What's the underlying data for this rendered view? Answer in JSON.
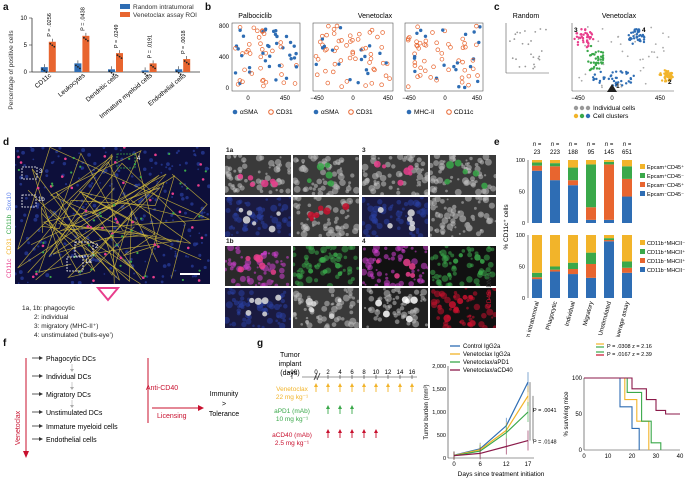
{
  "panel_labels": {
    "a": "a",
    "b": "b",
    "c": "c",
    "d": "d",
    "e": "e",
    "f": "f",
    "g": "g"
  },
  "colors": {
    "random": "#2e6db4",
    "venetoclax": "#e8652f",
    "green": "#3aa84a",
    "yellow": "#f2b42a",
    "red": "#c8102e",
    "pink": "#e83e8c"
  },
  "panel_a": {
    "ylabel": "Percentage of positive cells",
    "legend": [
      "Random intratumoral",
      "Venetoclax assay ROI"
    ],
    "pvalues": [
      "P = .0256",
      "P = .0438",
      "P = .0249",
      "P = .0191",
      "P = .0018"
    ],
    "chart_data": {
      "type": "bar",
      "categories": [
        "CD11c",
        "Leukocytes",
        "Dendritic cells",
        "Immature myeloid cells",
        "Endothelial cells"
      ],
      "series": [
        {
          "name": "Random intratumoral",
          "values": [
            0.9,
            1.6,
            0.5,
            0.3,
            0.5
          ]
        },
        {
          "name": "Venetoclax assay ROI",
          "values": [
            5.6,
            6.7,
            3.5,
            1.6,
            2.4
          ]
        }
      ],
      "ylim": [
        0,
        10
      ],
      "yticks": [
        "0",
        "5",
        "10"
      ]
    }
  },
  "panel_b": {
    "titles": [
      "Palbociclib",
      "Venetoclax"
    ],
    "xticks1": [
      "0",
      "450"
    ],
    "xticks2": [
      "−450",
      "0",
      "450"
    ],
    "xticks3": [
      "−450",
      "0",
      "450"
    ],
    "yticks1": [
      "0",
      "400",
      "800"
    ],
    "legend1": [
      "αSMA",
      "CD31"
    ],
    "legend2": [
      "αSMA",
      "CD31"
    ],
    "legend3": [
      "MHC-II",
      "CD11c"
    ]
  },
  "panel_c": {
    "titles": [
      "Random",
      "Venetoclax"
    ],
    "cluster_nums": [
      "1",
      "2",
      "3",
      "4"
    ],
    "xticks": [
      "−450",
      "0",
      "450"
    ],
    "legend": [
      "Individual cells",
      "Cell clusters"
    ]
  },
  "panel_d": {
    "channel_labels": [
      "CD11c",
      "CD31",
      "CD11b",
      "Sox10"
    ],
    "region_labels": [
      "1a",
      "1b",
      "2",
      "3",
      "4"
    ],
    "key": [
      "1a, 1b: phagocytic",
      "2: individual",
      "3: migratory (MHC-II⁺)",
      "4: unstimulated (‘bulls-eye’)"
    ],
    "tile_labels": [
      "1a",
      "3",
      "1b",
      "4"
    ],
    "side_label": "CD45",
    "side_label2": "DNA"
  },
  "panel_e": {
    "n_values": [
      "23",
      "223",
      "188",
      "95",
      "145",
      "651"
    ],
    "ylabel": "% CD11c⁺ cells",
    "categories": [
      "Random intratumoral",
      "Phagocytic",
      "Individual",
      "Migratory",
      "Unstimulated",
      "Average assay"
    ],
    "legend_top": [
      "Epcam⁺CD45⁺",
      "Epcam⁺CD45⁻",
      "Epcam⁻CD45⁺",
      "Epcam⁻CD45⁻"
    ],
    "legend_bottom": [
      "CD11b⁺MHCII⁻",
      "CD11b⁺MHCII⁺",
      "CD11b⁻MHCII⁺",
      "CD11b⁻MHCII⁻"
    ],
    "yticks": [
      "0",
      "50",
      "100"
    ],
    "chart_data": [
      {
        "type": "bar",
        "stacked": true,
        "categories": [
          "Random intratumoral",
          "Phagocytic",
          "Individual",
          "Migratory",
          "Unstimulated",
          "Average assay"
        ],
        "series": [
          {
            "name": "Epcam⁻CD45⁻",
            "values": [
              83,
              68,
              60,
              5,
              5,
              42
            ]
          },
          {
            "name": "Epcam⁻CD45⁺",
            "values": [
              8,
              22,
              8,
              20,
              88,
              28
            ]
          },
          {
            "name": "Epcam⁺CD45⁻",
            "values": [
              5,
              5,
              20,
              68,
              4,
              20
            ]
          },
          {
            "name": "Epcam⁺CD45⁺",
            "values": [
              4,
              5,
              12,
              7,
              3,
              10
            ]
          }
        ]
      },
      {
        "type": "bar",
        "stacked": true,
        "categories": [
          "Random intratumoral",
          "Phagocytic",
          "Individual",
          "Migratory",
          "Unstimulated",
          "Average assay"
        ],
        "series": [
          {
            "name": "CD11b⁻MHCII⁻",
            "values": [
              30,
              42,
              38,
              32,
              90,
              40
            ]
          },
          {
            "name": "CD11b⁻MHCII⁺",
            "values": [
              3,
              3,
              8,
              22,
              2,
              8
            ]
          },
          {
            "name": "CD11b⁺MHCII⁺",
            "values": [
              7,
              5,
              10,
              18,
              3,
              10
            ]
          },
          {
            "name": "CD11b⁺MHCII⁻",
            "values": [
              60,
              50,
              44,
              28,
              5,
              42
            ]
          }
        ]
      }
    ]
  },
  "panel_f": {
    "side_label": "Venetoclax",
    "items": [
      "Phagocytic DCs",
      "Individual DCs",
      "Migratory DCs",
      "Unstimulated DCs",
      "Immature myeloid cells",
      "Endothelial cells"
    ],
    "anti": "Anti-CD40",
    "licensing": "Licensing",
    "outcome_top": "Immunity",
    "outcome_gt": ">",
    "outcome_bottom": "Tolerance"
  },
  "panel_g": {
    "timeline_header": [
      "Tumor",
      "implant",
      "(days)"
    ],
    "days": [
      "−10",
      "0",
      "2",
      "4",
      "6",
      "8",
      "10",
      "12",
      "14",
      "16"
    ],
    "drugs": [
      {
        "name": "Venetoclax",
        "dose": "22 mg kg⁻¹"
      },
      {
        "name": "aPD1 (mAb)",
        "dose": "10 mg kg⁻¹"
      },
      {
        "name": "aCD40 (mAb)",
        "dose": "2.5 mg kg⁻¹"
      }
    ],
    "growth": {
      "ylabel": "Tumor burden (mm³)",
      "xlabel": "Days since treatment initiation",
      "legend": [
        "Control IgG2a",
        "Venetoclax IgG2a",
        "Venetoclax/aPD1",
        "Venetoclax/aCD40"
      ],
      "pvalues": [
        "P = .0041",
        "P = .0148"
      ],
      "chart_data": {
        "type": "line",
        "x": [
          0,
          6,
          12,
          17
        ],
        "series": [
          {
            "name": "Control IgG2a",
            "values": [
              60,
              200,
              700,
              1650
            ]
          },
          {
            "name": "Venetoclax IgG2a",
            "values": [
              55,
              180,
              600,
              1350
            ]
          },
          {
            "name": "Venetoclax/aPD1",
            "values": [
              50,
              150,
              550,
              1000
            ]
          },
          {
            "name": "Venetoclax/aCD40",
            "values": [
              50,
              100,
              250,
              380
            ]
          }
        ],
        "ylim": [
          0,
          2000
        ],
        "yticks": [
          "0",
          "500",
          "1,000",
          "1,500",
          "2,000"
        ],
        "xticks": [
          "0",
          "6",
          "12",
          "17"
        ]
      }
    },
    "survival": {
      "ylabel": "% surviving mice",
      "pvalues": [
        "P = .0308 z = 2.16",
        "P = .0167 z = 2.39"
      ],
      "chart_data": {
        "type": "line",
        "ylim": [
          0,
          100
        ],
        "xlim": [
          0,
          40
        ],
        "yticks": [
          "0",
          "50",
          "100"
        ],
        "xticks": [
          "0",
          "10",
          "20",
          "30",
          "40"
        ],
        "series": [
          {
            "name": "Control IgG2a",
            "points": [
              [
                0,
                100
              ],
              [
                15,
                100
              ],
              [
                15,
                60
              ],
              [
                20,
                60
              ],
              [
                20,
                30
              ],
              [
                23,
                30
              ],
              [
                23,
                0
              ]
            ]
          },
          {
            "name": "Venetoclax IgG2a",
            "points": [
              [
                0,
                100
              ],
              [
                17,
                100
              ],
              [
                17,
                70
              ],
              [
                22,
                70
              ],
              [
                22,
                40
              ],
              [
                27,
                40
              ],
              [
                27,
                0
              ]
            ]
          },
          {
            "name": "Venetoclax/aPD1",
            "points": [
              [
                0,
                100
              ],
              [
                18,
                100
              ],
              [
                18,
                80
              ],
              [
                24,
                80
              ],
              [
                24,
                40
              ],
              [
                28,
                40
              ],
              [
                28,
                10
              ],
              [
                32,
                10
              ],
              [
                32,
                0
              ]
            ]
          },
          {
            "name": "Venetoclax/aCD40",
            "points": [
              [
                0,
                100
              ],
              [
                20,
                100
              ],
              [
                20,
                85
              ],
              [
                26,
                85
              ],
              [
                26,
                70
              ],
              [
                30,
                70
              ],
              [
                30,
                55
              ],
              [
                34,
                55
              ],
              [
                34,
                50
              ],
              [
                40,
                50
              ]
            ]
          }
        ]
      }
    }
  }
}
